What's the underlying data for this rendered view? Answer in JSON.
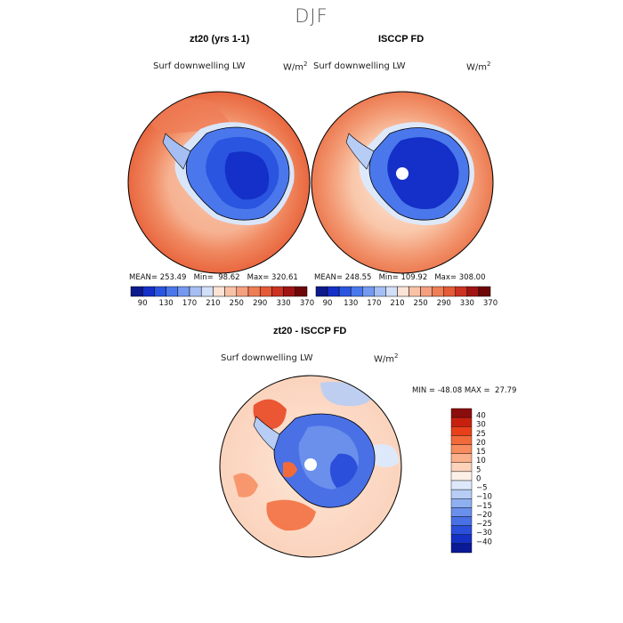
{
  "page_title": "DJF",
  "panels": [
    {
      "title": "zt20 (yrs 1-1)",
      "variable": "Surf downwelling LW",
      "unit_base": "W/m",
      "unit_exp": "2",
      "stats": {
        "mean_label": "MEAN=",
        "mean": "253.49",
        "min_label": "Min=",
        "min": "98.62",
        "max_label": "Max=",
        "max": "320.61"
      }
    },
    {
      "title": "ISCCP FD",
      "variable": "Surf downwelling LW",
      "unit_base": "W/m",
      "unit_exp": "2",
      "stats": {
        "mean_label": "MEAN=",
        "mean": "248.55",
        "min_label": "Min=",
        "min": "109.92",
        "max_label": "Max=",
        "max": "308.00"
      }
    },
    {
      "title": "zt20 - ISCCP FD",
      "variable": "Surf downwelling LW",
      "unit_base": "W/m",
      "unit_exp": "2",
      "stats": {
        "min_label": "MIN =",
        "min": "-48.08",
        "max_label": "MAX =",
        "max": "27.79"
      }
    }
  ],
  "chart_data": [
    {
      "type": "heatmap",
      "title": "zt20 (yrs 1-1)",
      "projection": "south polar stereographic",
      "variable": "Surf downwelling LW",
      "units": "W/m2",
      "mean": 253.49,
      "min": 98.62,
      "max": 320.61,
      "colorbar_levels": [
        90,
        130,
        170,
        210,
        250,
        290,
        330,
        370
      ],
      "colorbar_colors": [
        "#0d1a8c",
        "#1430c8",
        "#2a55e0",
        "#4a78ec",
        "#7499f0",
        "#a5bff4",
        "#d2dff8",
        "#fbe3d6",
        "#f9c2a6",
        "#f5a07e",
        "#ef7e56",
        "#e55a37",
        "#cc3222",
        "#a01414",
        "#6e0808"
      ]
    },
    {
      "type": "heatmap",
      "title": "ISCCP FD",
      "projection": "south polar stereographic",
      "variable": "Surf downwelling LW",
      "units": "W/m2",
      "mean": 248.55,
      "min": 109.92,
      "max": 308.0,
      "colorbar_levels": [
        90,
        130,
        170,
        210,
        250,
        290,
        330,
        370
      ],
      "colorbar_colors": [
        "#0d1a8c",
        "#1430c8",
        "#2a55e0",
        "#4a78ec",
        "#7499f0",
        "#a5bff4",
        "#d2dff8",
        "#fbe3d6",
        "#f9c2a6",
        "#f5a07e",
        "#ef7e56",
        "#e55a37",
        "#cc3222",
        "#a01414",
        "#6e0808"
      ]
    },
    {
      "type": "heatmap",
      "title": "zt20 - ISCCP FD",
      "projection": "south polar stereographic",
      "variable": "Surf downwelling LW",
      "units": "W/m2",
      "min": -48.08,
      "max": 27.79,
      "colorbar_levels": [
        40,
        30,
        25,
        20,
        15,
        10,
        5,
        0,
        -5,
        -10,
        -15,
        -20,
        -25,
        -30,
        -40
      ],
      "colorbar_colors": [
        "#8c0d0d",
        "#c8200f",
        "#e8401a",
        "#f26a3a",
        "#f78c5e",
        "#fab08a",
        "#fcd2bb",
        "#fdf0e6",
        "#dde9fa",
        "#b7cdf5",
        "#8fb0f0",
        "#6a90ec",
        "#4a70e6",
        "#2b4fda",
        "#1530c4",
        "#0a1a96"
      ]
    }
  ]
}
